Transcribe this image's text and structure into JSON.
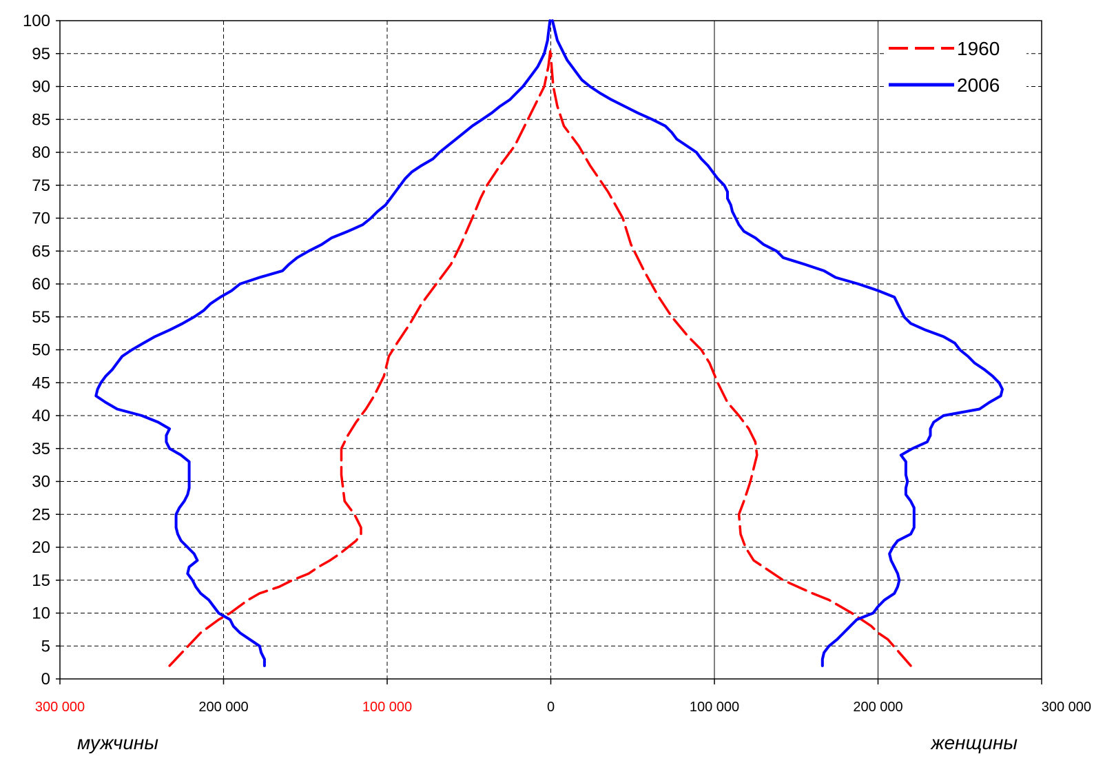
{
  "chart_data": {
    "type": "line",
    "subtype": "population-pyramid",
    "title": "",
    "y_axis": {
      "min": 0,
      "max": 100,
      "step": 5,
      "ticks": [
        "0",
        "5",
        "10",
        "15",
        "20",
        "25",
        "30",
        "35",
        "40",
        "45",
        "50",
        "55",
        "60",
        "65",
        "70",
        "75",
        "80",
        "85",
        "90",
        "95",
        "100"
      ]
    },
    "x_axis": {
      "min": -300000,
      "max": 300000,
      "ticks": [
        {
          "value": -300000,
          "label": "300 000",
          "color": "#ff0000"
        },
        {
          "value": -200000,
          "label": "200 000",
          "color": "#000000"
        },
        {
          "value": -100000,
          "label": "100 000",
          "color": "#ff0000"
        },
        {
          "value": 0,
          "label": "0",
          "color": "#000000"
        },
        {
          "value": 100000,
          "label": "100 000",
          "color": "#000000"
        },
        {
          "value": 200000,
          "label": "200 000",
          "color": "#000000"
        },
        {
          "value": 300000,
          "label": "300 000",
          "color": "#000000"
        }
      ]
    },
    "side_labels": {
      "left": "мужчины",
      "right": "женщины"
    },
    "grid": true,
    "legend_position": "top-right",
    "series": [
      {
        "name": "1960",
        "color": "#ff0000",
        "style": "dashed",
        "male": [
          [
            2,
            233000
          ],
          [
            7,
            214000
          ],
          [
            9,
            203000
          ],
          [
            10,
            196000
          ],
          [
            12,
            185000
          ],
          [
            13,
            178000
          ],
          [
            14,
            166000
          ],
          [
            15,
            158000
          ],
          [
            16,
            148000
          ],
          [
            17,
            142000
          ],
          [
            18,
            135000
          ],
          [
            19,
            129000
          ],
          [
            20,
            124000
          ],
          [
            21,
            119000
          ],
          [
            22,
            116000
          ],
          [
            23,
            116000
          ],
          [
            24,
            118000
          ],
          [
            25,
            120000
          ],
          [
            27,
            126000
          ],
          [
            29,
            127000
          ],
          [
            31,
            128000
          ],
          [
            33,
            128000
          ],
          [
            35,
            128000
          ],
          [
            37,
            124000
          ],
          [
            39,
            119000
          ],
          [
            41,
            113000
          ],
          [
            43,
            108000
          ],
          [
            46,
            102000
          ],
          [
            49,
            99000
          ],
          [
            51,
            94000
          ],
          [
            54,
            86000
          ],
          [
            57,
            79000
          ],
          [
            60,
            70000
          ],
          [
            63,
            61000
          ],
          [
            66,
            55000
          ],
          [
            70,
            48000
          ],
          [
            73,
            43000
          ],
          [
            75,
            39000
          ],
          [
            78,
            31000
          ],
          [
            81,
            22000
          ],
          [
            84,
            16000
          ],
          [
            87,
            10000
          ],
          [
            90,
            4000
          ],
          [
            93,
            1500
          ],
          [
            96,
            0
          ]
        ],
        "female": [
          [
            2,
            220000
          ],
          [
            4,
            213000
          ],
          [
            6,
            206000
          ],
          [
            7,
            200000
          ],
          [
            8,
            196000
          ],
          [
            10,
            184000
          ],
          [
            12,
            170000
          ],
          [
            13,
            160000
          ],
          [
            15,
            142000
          ],
          [
            17,
            130000
          ],
          [
            18,
            124000
          ],
          [
            20,
            119000
          ],
          [
            22,
            116000
          ],
          [
            25,
            115000
          ],
          [
            27,
            118000
          ],
          [
            30,
            122000
          ],
          [
            32,
            124000
          ],
          [
            34,
            126000
          ],
          [
            36,
            125000
          ],
          [
            38,
            121000
          ],
          [
            40,
            115000
          ],
          [
            42,
            108000
          ],
          [
            45,
            102000
          ],
          [
            48,
            97000
          ],
          [
            50,
            92000
          ],
          [
            52,
            84000
          ],
          [
            55,
            74000
          ],
          [
            58,
            66000
          ],
          [
            62,
            57000
          ],
          [
            66,
            49000
          ],
          [
            70,
            44000
          ],
          [
            74,
            35000
          ],
          [
            78,
            24000
          ],
          [
            81,
            17000
          ],
          [
            84,
            8000
          ],
          [
            87,
            4000
          ],
          [
            90,
            1500
          ],
          [
            93,
            500
          ],
          [
            95,
            0
          ]
        ]
      },
      {
        "name": "2006",
        "color": "#0000ff",
        "style": "solid",
        "male": [
          [
            2,
            175000
          ],
          [
            3,
            175000
          ],
          [
            4,
            177000
          ],
          [
            5,
            178000
          ],
          [
            6,
            184000
          ],
          [
            7,
            190000
          ],
          [
            8,
            194000
          ],
          [
            9,
            196000
          ],
          [
            10,
            203000
          ],
          [
            11,
            206000
          ],
          [
            12,
            209000
          ],
          [
            13,
            214000
          ],
          [
            14,
            217000
          ],
          [
            15,
            219000
          ],
          [
            16,
            222000
          ],
          [
            17,
            221000
          ],
          [
            18,
            216000
          ],
          [
            19,
            218000
          ],
          [
            20,
            222000
          ],
          [
            21,
            226000
          ],
          [
            22,
            228000
          ],
          [
            23,
            229000
          ],
          [
            24,
            229000
          ],
          [
            25,
            229000
          ],
          [
            26,
            227000
          ],
          [
            27,
            224000
          ],
          [
            28,
            222000
          ],
          [
            29,
            221000
          ],
          [
            30,
            221000
          ],
          [
            31,
            221000
          ],
          [
            32,
            221000
          ],
          [
            33,
            221000
          ],
          [
            34,
            226000
          ],
          [
            35,
            233000
          ],
          [
            36,
            235000
          ],
          [
            37,
            235000
          ],
          [
            38,
            233000
          ],
          [
            39,
            240000
          ],
          [
            40,
            250000
          ],
          [
            41,
            265000
          ],
          [
            42,
            272000
          ],
          [
            43,
            278000
          ],
          [
            44,
            277000
          ],
          [
            45,
            275000
          ],
          [
            46,
            272000
          ],
          [
            47,
            268000
          ],
          [
            48,
            265000
          ],
          [
            49,
            262000
          ],
          [
            50,
            256000
          ],
          [
            51,
            249000
          ],
          [
            52,
            242000
          ],
          [
            53,
            233000
          ],
          [
            54,
            225000
          ],
          [
            55,
            218000
          ],
          [
            56,
            212000
          ],
          [
            57,
            208000
          ],
          [
            58,
            202000
          ],
          [
            59,
            195000
          ],
          [
            60,
            190000
          ],
          [
            61,
            178000
          ],
          [
            62,
            164000
          ],
          [
            63,
            160000
          ],
          [
            64,
            155000
          ],
          [
            65,
            148000
          ],
          [
            66,
            140000
          ],
          [
            67,
            134000
          ],
          [
            68,
            124000
          ],
          [
            69,
            115000
          ],
          [
            70,
            110000
          ],
          [
            71,
            106000
          ],
          [
            72,
            101000
          ],
          [
            73,
            98000
          ],
          [
            74,
            95000
          ],
          [
            75,
            92000
          ],
          [
            76,
            89000
          ],
          [
            77,
            85000
          ],
          [
            78,
            79000
          ],
          [
            79,
            72000
          ],
          [
            80,
            68000
          ],
          [
            81,
            63000
          ],
          [
            82,
            58000
          ],
          [
            83,
            53000
          ],
          [
            84,
            48000
          ],
          [
            85,
            42000
          ],
          [
            86,
            36000
          ],
          [
            87,
            31000
          ],
          [
            88,
            25000
          ],
          [
            89,
            21000
          ],
          [
            90,
            17000
          ],
          [
            91,
            14000
          ],
          [
            92,
            11000
          ],
          [
            93,
            8000
          ],
          [
            94,
            6000
          ],
          [
            95,
            4000
          ],
          [
            96,
            3000
          ],
          [
            97,
            2000
          ],
          [
            98,
            1500
          ],
          [
            99,
            1000
          ],
          [
            100,
            500
          ]
        ],
        "female": [
          [
            2,
            166000
          ],
          [
            3,
            166000
          ],
          [
            4,
            167000
          ],
          [
            5,
            170000
          ],
          [
            6,
            175000
          ],
          [
            7,
            179000
          ],
          [
            8,
            183000
          ],
          [
            9,
            187000
          ],
          [
            10,
            197000
          ],
          [
            11,
            200000
          ],
          [
            12,
            204000
          ],
          [
            13,
            210000
          ],
          [
            14,
            212000
          ],
          [
            15,
            213000
          ],
          [
            16,
            212000
          ],
          [
            17,
            210000
          ],
          [
            18,
            208000
          ],
          [
            19,
            207000
          ],
          [
            20,
            209000
          ],
          [
            21,
            212000
          ],
          [
            22,
            220000
          ],
          [
            23,
            222000
          ],
          [
            24,
            222000
          ],
          [
            25,
            222000
          ],
          [
            26,
            222000
          ],
          [
            27,
            220000
          ],
          [
            28,
            217000
          ],
          [
            29,
            217000
          ],
          [
            30,
            218000
          ],
          [
            31,
            217000
          ],
          [
            32,
            217000
          ],
          [
            33,
            217000
          ],
          [
            34,
            214000
          ],
          [
            35,
            221000
          ],
          [
            36,
            230000
          ],
          [
            37,
            232000
          ],
          [
            38,
            232000
          ],
          [
            39,
            234000
          ],
          [
            40,
            240000
          ],
          [
            41,
            262000
          ],
          [
            42,
            268000
          ],
          [
            43,
            275000
          ],
          [
            44,
            276000
          ],
          [
            45,
            274000
          ],
          [
            46,
            270000
          ],
          [
            47,
            265000
          ],
          [
            48,
            259000
          ],
          [
            49,
            255000
          ],
          [
            50,
            250000
          ],
          [
            51,
            247000
          ],
          [
            52,
            240000
          ],
          [
            53,
            229000
          ],
          [
            54,
            220000
          ],
          [
            55,
            216000
          ],
          [
            56,
            214000
          ],
          [
            57,
            212000
          ],
          [
            58,
            210000
          ],
          [
            59,
            200000
          ],
          [
            60,
            188000
          ],
          [
            61,
            174000
          ],
          [
            62,
            167000
          ],
          [
            63,
            155000
          ],
          [
            64,
            142000
          ],
          [
            65,
            138000
          ],
          [
            66,
            130000
          ],
          [
            67,
            125000
          ],
          [
            68,
            118000
          ],
          [
            69,
            115000
          ],
          [
            70,
            113000
          ],
          [
            71,
            111000
          ],
          [
            72,
            110000
          ],
          [
            73,
            108000
          ],
          [
            74,
            108000
          ],
          [
            75,
            106000
          ],
          [
            76,
            102000
          ],
          [
            77,
            99000
          ],
          [
            78,
            96000
          ],
          [
            79,
            92000
          ],
          [
            80,
            89000
          ],
          [
            81,
            83000
          ],
          [
            82,
            77000
          ],
          [
            83,
            74000
          ],
          [
            84,
            70000
          ],
          [
            85,
            62000
          ],
          [
            86,
            53000
          ],
          [
            87,
            45000
          ],
          [
            88,
            37000
          ],
          [
            89,
            30000
          ],
          [
            90,
            24000
          ],
          [
            91,
            19000
          ],
          [
            92,
            16000
          ],
          [
            93,
            13000
          ],
          [
            94,
            10000
          ],
          [
            95,
            8000
          ],
          [
            96,
            6000
          ],
          [
            97,
            4000
          ],
          [
            98,
            3000
          ],
          [
            99,
            2000
          ],
          [
            100,
            1000
          ]
        ]
      }
    ]
  }
}
